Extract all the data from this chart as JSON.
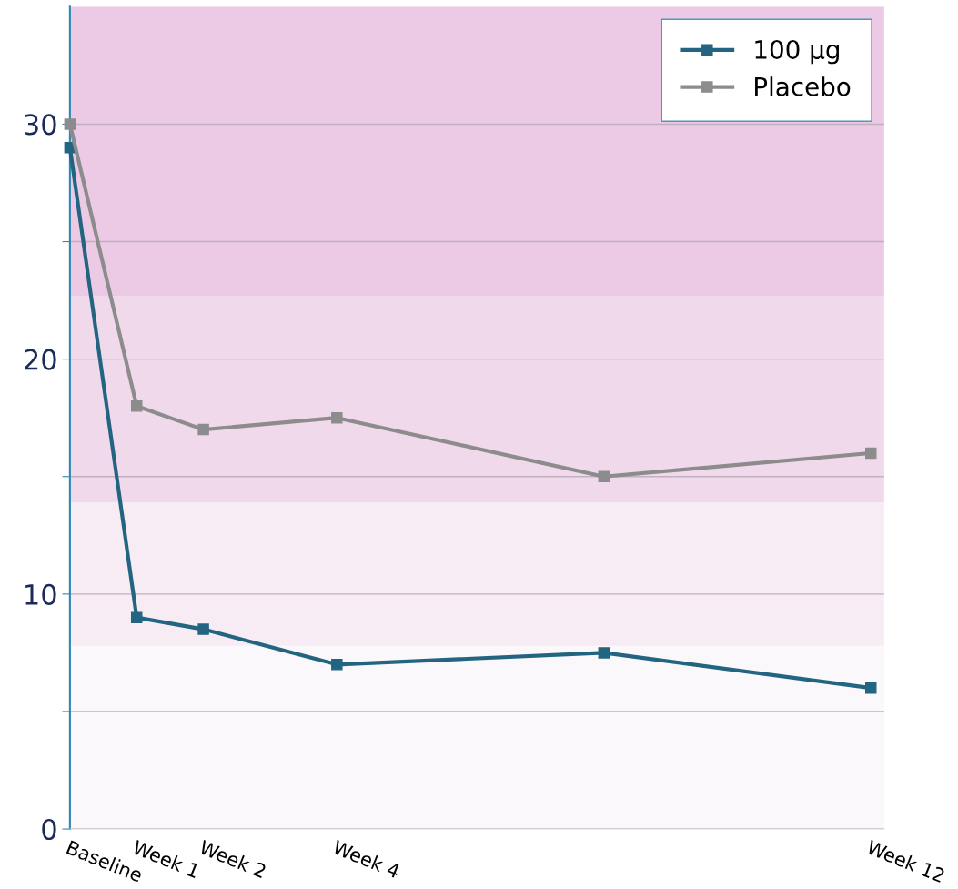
{
  "chart_data": {
    "type": "line",
    "categories": [
      "Baseline",
      "Week 1",
      "Week 2",
      null,
      "Week 4",
      null,
      null,
      null,
      null,
      null,
      null,
      null,
      "Week 12"
    ],
    "series": [
      {
        "name": "100 µg",
        "color": "#236580",
        "values": [
          29,
          9,
          8.5,
          null,
          7,
          null,
          null,
          null,
          7.5,
          null,
          null,
          null,
          6
        ]
      },
      {
        "name": "Placebo",
        "color": "#8c8c8c",
        "values": [
          30,
          18,
          17,
          null,
          17.5,
          null,
          null,
          null,
          15,
          null,
          null,
          null,
          16
        ]
      }
    ],
    "ylim": [
      0,
      35
    ],
    "yticks": [
      0,
      {
        "value": 5,
        "label": null
      },
      10,
      {
        "value": 15,
        "label": null
      },
      20,
      {
        "value": 25,
        "label": null
      },
      30
    ],
    "bands": [
      {
        "axis": "y",
        "from": 0,
        "to": 7.8,
        "label": null,
        "color": "#fbf8fb"
      },
      {
        "axis": "y",
        "from": 7.8,
        "to": 13.9,
        "label": null,
        "color": "#f7ebf4"
      },
      {
        "axis": "y",
        "from": 13.9,
        "to": 22.7,
        "label": null,
        "color": "#f1d9ec"
      },
      {
        "axis": "y",
        "from": 22.7,
        "to": 35,
        "label": null,
        "color": "#ecc9e4"
      }
    ],
    "grid": "y",
    "legend": "top right",
    "marker": "square",
    "line_style": "solid"
  }
}
